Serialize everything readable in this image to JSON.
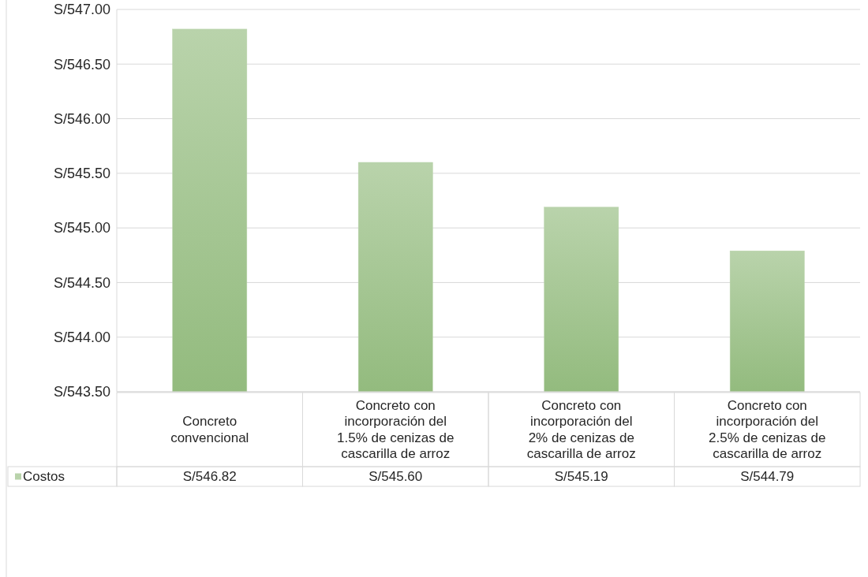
{
  "chart_data": {
    "type": "bar",
    "categories": [
      "Concreto convencional",
      "Concreto con incorporación del 1.5% de cenizas de cascarilla de arroz",
      "Concreto con incorporación del 2% de cenizas de cascarilla de arroz",
      "Concreto con incorporación del 2.5% de cenizas de cascarilla de arroz"
    ],
    "series": [
      {
        "name": "Costos",
        "color": "#b9d3ab",
        "values": [
          546.82,
          545.6,
          545.19,
          544.79
        ],
        "value_labels": [
          "S/546.82",
          "S/545.60",
          "S/545.19",
          "S/544.79"
        ]
      }
    ],
    "ylim": [
      543.5,
      547
    ],
    "yticks": [
      {
        "value": 543.5,
        "label": "S/543.50"
      },
      {
        "value": 544,
        "label": "S/544.00"
      },
      {
        "value": 544.5,
        "label": "S/544.50"
      },
      {
        "value": 545,
        "label": "S/545.00"
      },
      {
        "value": 545.5,
        "label": "S/545.50"
      },
      {
        "value": 546,
        "label": "S/546.00"
      },
      {
        "value": 546.5,
        "label": "S/546.50"
      },
      {
        "value": 547,
        "label": "S/547.00"
      }
    ],
    "grid": "y",
    "legend": "bottom"
  }
}
